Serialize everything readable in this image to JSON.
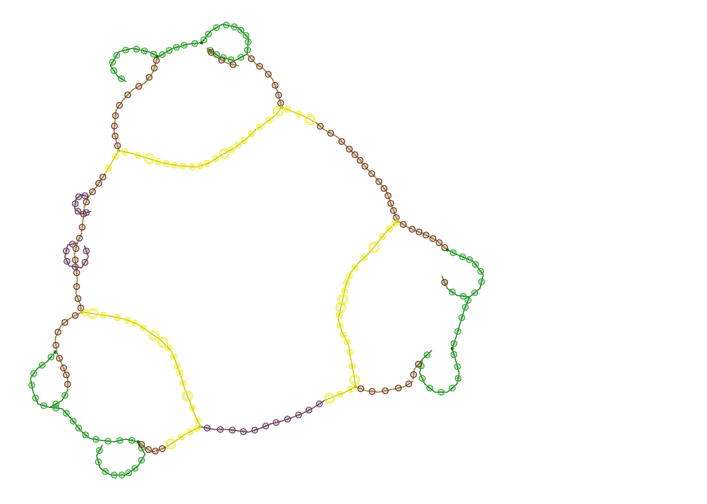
{
  "figure": {
    "subject": "fractal-pattern",
    "background_color": "#ffffff",
    "palette": {
      "yellow": "#f0ef1a",
      "yellow_dark": "#c8c400",
      "green": "#2aa52a",
      "green_dark": "#117a11",
      "violet": "#4b3f7a",
      "maroon": "#7a2a2a",
      "olive": "#7a7a1a"
    }
  }
}
